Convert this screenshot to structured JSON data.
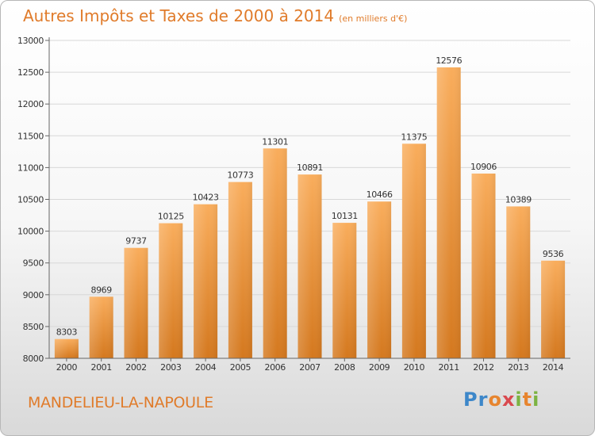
{
  "header": {
    "title": "Autres Impôts et Taxes de 2000 à 2014",
    "unit": "(en milliers d'€)"
  },
  "footer": {
    "town": "MANDELIEU-LA-NAPOULE",
    "logo": "Proxiti"
  },
  "colors": {
    "accent": "#e07b2a",
    "bar_light": "#f7aa5a",
    "bar_dark": "#d47a20"
  },
  "chart_data": {
    "type": "bar",
    "categories": [
      "2000",
      "2001",
      "2002",
      "2003",
      "2004",
      "2005",
      "2006",
      "2007",
      "2008",
      "2009",
      "2010",
      "2011",
      "2012",
      "2013",
      "2014"
    ],
    "values": [
      8303,
      8969,
      9737,
      10125,
      10423,
      10773,
      11301,
      10891,
      10131,
      10466,
      11375,
      12576,
      10906,
      10389,
      9536
    ],
    "title": "Autres Impôts et Taxes de 2000 à 2014",
    "ylim": [
      8000,
      13000
    ],
    "yticks": [
      8000,
      8500,
      9000,
      9500,
      10000,
      10500,
      11000,
      11500,
      12000,
      12500,
      13000
    ],
    "grid": true,
    "data_labels": true
  }
}
